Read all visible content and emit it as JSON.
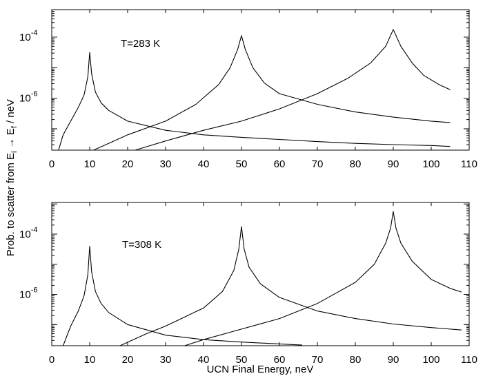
{
  "chart_data": [
    {
      "type": "line",
      "annotation": "T=283 K",
      "xlim": [
        0,
        110
      ],
      "ylim_log10": [
        -7.7,
        -3.1
      ],
      "xticks": [
        0,
        10,
        20,
        30,
        40,
        50,
        60,
        70,
        80,
        90,
        100,
        110
      ],
      "xtick_labels": [
        "0",
        "10",
        "20",
        "30",
        "40",
        "50",
        "60",
        "70",
        "80",
        "90",
        "100",
        "110"
      ],
      "yticks": [
        {
          "exp": -4,
          "label_base": "10",
          "label_exp": "-4"
        },
        {
          "exp": -6,
          "label_base": "10",
          "label_exp": "-6"
        }
      ],
      "series": [
        {
          "peak_x": 10,
          "points": [
            [
              1.8,
              -7.7
            ],
            [
              3,
              -7.2
            ],
            [
              5,
              -6.75
            ],
            [
              7,
              -6.3
            ],
            [
              8.5,
              -5.9
            ],
            [
              9.5,
              -5.3
            ],
            [
              10,
              -4.5
            ],
            [
              10.5,
              -5.2
            ],
            [
              11.5,
              -5.8
            ],
            [
              13,
              -6.15
            ],
            [
              15,
              -6.4
            ],
            [
              20,
              -6.75
            ],
            [
              30,
              -7.05
            ],
            [
              40,
              -7.2
            ],
            [
              50,
              -7.28
            ],
            [
              60,
              -7.35
            ],
            [
              70,
              -7.42
            ],
            [
              80,
              -7.48
            ],
            [
              90,
              -7.52
            ],
            [
              100,
              -7.55
            ],
            [
              105,
              -7.58
            ]
          ]
        },
        {
          "peak_x": 50,
          "points": [
            [
              11,
              -7.7
            ],
            [
              15,
              -7.48
            ],
            [
              20,
              -7.2
            ],
            [
              30,
              -6.75
            ],
            [
              38,
              -6.2
            ],
            [
              44,
              -5.55
            ],
            [
              47,
              -5.0
            ],
            [
              49,
              -4.4
            ],
            [
              50,
              -3.95
            ],
            [
              51,
              -4.4
            ],
            [
              53,
              -5.0
            ],
            [
              56,
              -5.5
            ],
            [
              60,
              -5.85
            ],
            [
              70,
              -6.2
            ],
            [
              80,
              -6.45
            ],
            [
              90,
              -6.62
            ],
            [
              100,
              -6.75
            ],
            [
              105,
              -6.8
            ]
          ]
        },
        {
          "peak_x": 90,
          "points": [
            [
              22,
              -7.7
            ],
            [
              30,
              -7.4
            ],
            [
              40,
              -7.05
            ],
            [
              50,
              -6.75
            ],
            [
              60,
              -6.35
            ],
            [
              70,
              -5.85
            ],
            [
              78,
              -5.35
            ],
            [
              84,
              -4.85
            ],
            [
              88,
              -4.3
            ],
            [
              90,
              -3.75
            ],
            [
              92,
              -4.3
            ],
            [
              95,
              -4.85
            ],
            [
              98,
              -5.25
            ],
            [
              102,
              -5.55
            ],
            [
              105,
              -5.72
            ]
          ]
        }
      ]
    },
    {
      "type": "line",
      "annotation": "T=308 K",
      "xlim": [
        0,
        110
      ],
      "ylim_log10": [
        -7.7,
        -2.95
      ],
      "xticks": [
        0,
        10,
        20,
        30,
        40,
        50,
        60,
        70,
        80,
        90,
        100,
        110
      ],
      "xtick_labels": [
        "0",
        "10",
        "20",
        "30",
        "40",
        "50",
        "60",
        "70",
        "80",
        "90",
        "100",
        "110"
      ],
      "yticks": [
        {
          "exp": -4,
          "label_base": "10",
          "label_exp": "-4"
        },
        {
          "exp": -6,
          "label_base": "10",
          "label_exp": "-6"
        }
      ],
      "series": [
        {
          "peak_x": 10,
          "points": [
            [
              3,
              -7.7
            ],
            [
              5,
              -7.05
            ],
            [
              7,
              -6.55
            ],
            [
              8.5,
              -6.05
            ],
            [
              9.5,
              -5.35
            ],
            [
              10,
              -4.4
            ],
            [
              10.5,
              -5.25
            ],
            [
              11.5,
              -5.9
            ],
            [
              13,
              -6.3
            ],
            [
              15,
              -6.6
            ],
            [
              20,
              -7.0
            ],
            [
              30,
              -7.35
            ],
            [
              40,
              -7.5
            ],
            [
              50,
              -7.58
            ],
            [
              60,
              -7.64
            ],
            [
              66,
              -7.68
            ]
          ]
        },
        {
          "peak_x": 50,
          "points": [
            [
              18,
              -7.7
            ],
            [
              25,
              -7.3
            ],
            [
              30,
              -7.05
            ],
            [
              40,
              -6.45
            ],
            [
              45,
              -5.9
            ],
            [
              48,
              -5.2
            ],
            [
              49.3,
              -4.5
            ],
            [
              50,
              -3.75
            ],
            [
              50.7,
              -4.5
            ],
            [
              52,
              -5.1
            ],
            [
              55,
              -5.65
            ],
            [
              60,
              -6.1
            ],
            [
              70,
              -6.55
            ],
            [
              80,
              -6.8
            ],
            [
              90,
              -6.98
            ],
            [
              100,
              -7.1
            ],
            [
              108,
              -7.18
            ]
          ]
        },
        {
          "peak_x": 90,
          "points": [
            [
              35,
              -7.7
            ],
            [
              40,
              -7.5
            ],
            [
              50,
              -7.15
            ],
            [
              60,
              -6.8
            ],
            [
              70,
              -6.3
            ],
            [
              80,
              -5.6
            ],
            [
              85,
              -5.0
            ],
            [
              88,
              -4.3
            ],
            [
              89.3,
              -3.8
            ],
            [
              90,
              -3.25
            ],
            [
              90.7,
              -3.8
            ],
            [
              92,
              -4.3
            ],
            [
              95,
              -4.9
            ],
            [
              100,
              -5.5
            ],
            [
              105,
              -5.8
            ],
            [
              108,
              -5.92
            ]
          ]
        }
      ]
    }
  ],
  "shared": {
    "ylabel": "Prob. to scatter from E",
    "ylabel_sub_i": "i",
    "ylabel_arrow": " → E",
    "ylabel_sub_f": "f",
    "ylabel_tail": " / neV",
    "xlabel": "UCN Final Energy, neV"
  }
}
